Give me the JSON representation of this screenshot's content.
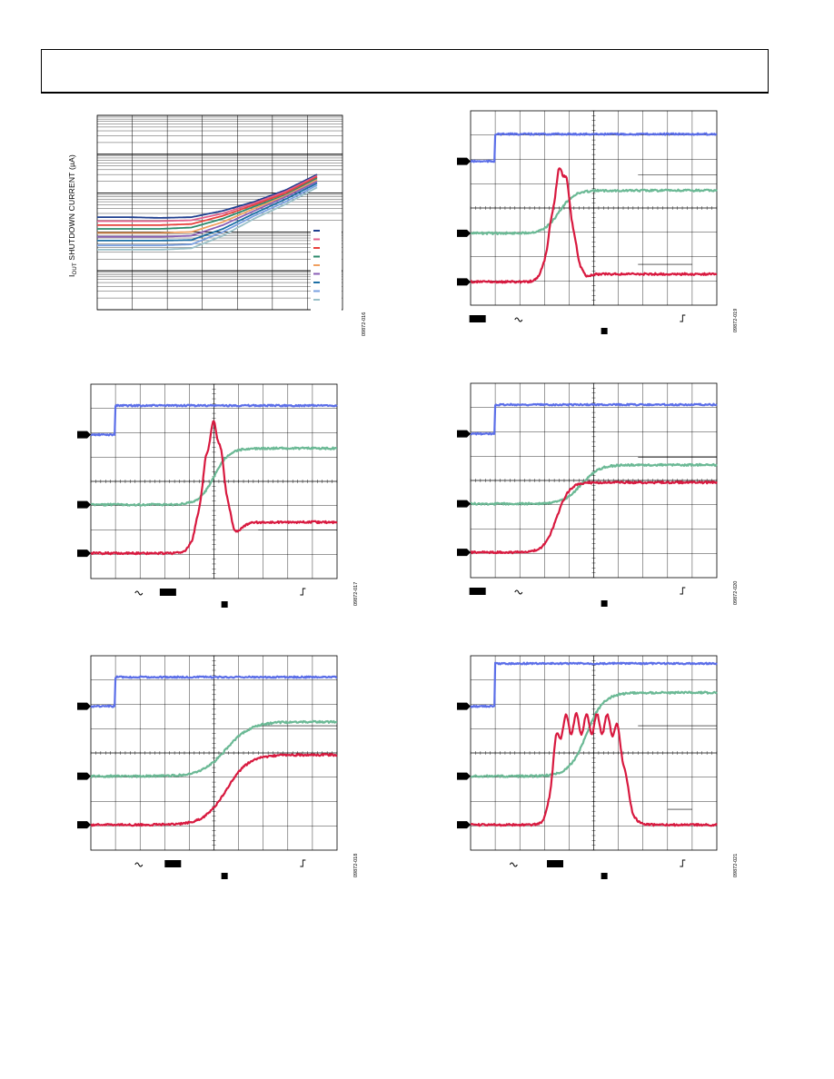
{
  "header": {
    "title": ""
  },
  "figures": [
    {
      "id": "fig1",
      "code": "09872-016",
      "ylabel_main": "I",
      "ylabel_sub": "OUT",
      "ylabel_rest": " SHUTDOWN CURRENT (µA)"
    },
    {
      "id": "fig2",
      "code": "09872-019"
    },
    {
      "id": "fig3",
      "code": "09872-017"
    },
    {
      "id": "fig4",
      "code": "09872-020"
    },
    {
      "id": "fig5",
      "code": "09872-018"
    },
    {
      "id": "fig6",
      "code": "09872-021"
    }
  ],
  "colors": {
    "blue": "#5b6ee8",
    "green": "#6bb995",
    "red": "#d8193f",
    "legend": [
      "#1f3f8f",
      "#e2608c",
      "#e8413d",
      "#2d8a6c",
      "#f0a060",
      "#8a5fb5",
      "#1d6fa5",
      "#7aa0e0",
      "#9ac0c8"
    ]
  },
  "chart_data": [
    {
      "type": "line",
      "title": "",
      "ylabel": "IOUT SHUTDOWN CURRENT (µA)",
      "xlabel": "",
      "x": [
        0,
        1,
        2,
        3,
        4,
        5,
        6,
        7
      ],
      "yscale": "log",
      "ylim": [
        0.01,
        1000
      ],
      "grid": true,
      "legend": "right",
      "series": [
        {
          "values": [
            2.4,
            2.4,
            2.3,
            2.4,
            3.5,
            6,
            12,
            30
          ]
        },
        {
          "values": [
            1.9,
            1.9,
            1.9,
            2.0,
            3.0,
            5.5,
            11,
            28
          ]
        },
        {
          "values": [
            1.5,
            1.5,
            1.5,
            1.6,
            2.6,
            5,
            10,
            26
          ]
        },
        {
          "values": [
            1.2,
            1.2,
            1.2,
            1.3,
            2.2,
            4.5,
            9,
            24
          ]
        },
        {
          "values": [
            0.95,
            0.95,
            0.95,
            1.0,
            1.8,
            4,
            8.5,
            22
          ]
        },
        {
          "values": [
            0.75,
            0.75,
            0.75,
            0.8,
            1.5,
            3.5,
            8,
            20
          ]
        },
        {
          "values": [
            0.6,
            0.6,
            0.6,
            0.62,
            1.2,
            3,
            7,
            18
          ]
        },
        {
          "values": [
            0.45,
            0.45,
            0.45,
            0.48,
            1.0,
            2.6,
            6,
            16
          ]
        },
        {
          "values": [
            0.35,
            0.35,
            0.35,
            0.38,
            0.8,
            2.2,
            5.2,
            14
          ]
        }
      ]
    },
    {
      "type": "line",
      "title": "",
      "traces": [
        "ch1-step",
        "ch2-ramp",
        "ch3-pulse"
      ],
      "grid": true
    },
    {
      "type": "line",
      "title": "",
      "traces": [
        "ch1-step",
        "ch2-ramp",
        "ch3-pulse"
      ],
      "grid": true
    },
    {
      "type": "line",
      "title": "",
      "traces": [
        "ch1-step",
        "ch2-ramp",
        "ch3-ramp"
      ],
      "grid": true
    },
    {
      "type": "line",
      "title": "",
      "traces": [
        "ch1-step",
        "ch2-ramp",
        "ch3-ramp"
      ],
      "grid": true
    },
    {
      "type": "line",
      "title": "",
      "traces": [
        "ch1-step",
        "ch2-ramp",
        "ch3-pulse"
      ],
      "grid": true
    }
  ]
}
